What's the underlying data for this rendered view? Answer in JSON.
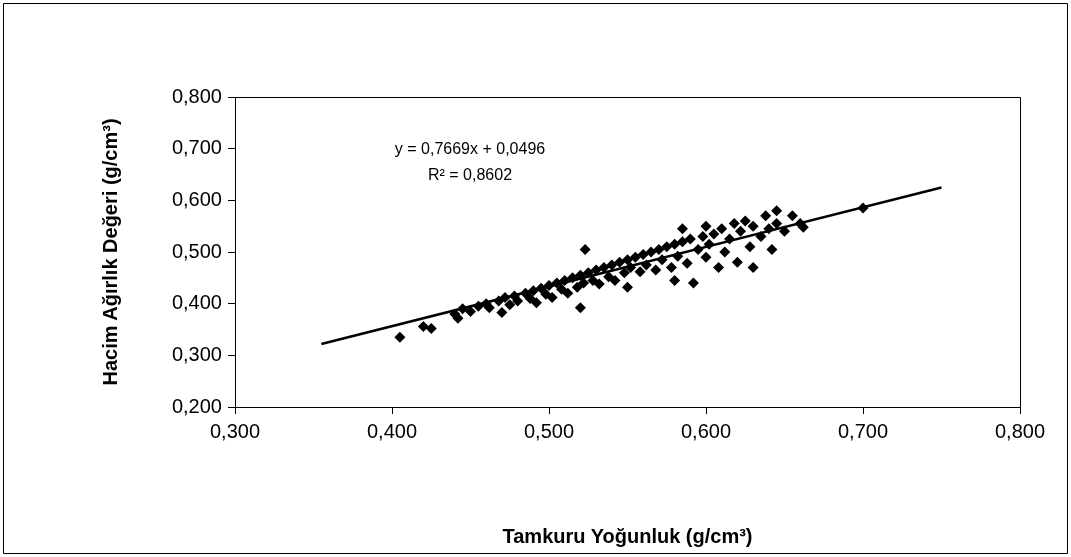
{
  "chart_data": {
    "type": "scatter",
    "xlabel": "Tamkuru Yoğunluk (g/cm³)",
    "ylabel": "Hacim Ağırlık Değeri (g/cm³)",
    "xlim": [
      0.3,
      0.8
    ],
    "xticks": [
      {
        "value": 0.3,
        "label": "0,300"
      },
      {
        "value": 0.4,
        "label": "0,400"
      },
      {
        "value": 0.5,
        "label": "0,500"
      },
      {
        "value": 0.6,
        "label": "0,600"
      },
      {
        "value": 0.7,
        "label": "0,700"
      },
      {
        "value": 0.8,
        "label": "0,800"
      }
    ],
    "ylim": [
      0.2,
      0.8
    ],
    "yticks": [
      {
        "value": 0.2,
        "label": "0,200"
      },
      {
        "value": 0.3,
        "label": "0,300"
      },
      {
        "value": 0.4,
        "label": "0,400"
      },
      {
        "value": 0.5,
        "label": "0,500"
      },
      {
        "value": 0.6,
        "label": "0,600"
      },
      {
        "value": 0.7,
        "label": "0,700"
      },
      {
        "value": 0.8,
        "label": "0,800"
      }
    ],
    "grid": false,
    "legend": false,
    "marker": "diamond",
    "annotations": [
      "y = 0,7669x + 0,0496",
      "R² = 0,8602"
    ],
    "series": [
      {
        "color": "#000000",
        "x": [
          0.405,
          0.42,
          0.425,
          0.44,
          0.442,
          0.445,
          0.45,
          0.455,
          0.46,
          0.462,
          0.468,
          0.47,
          0.472,
          0.475,
          0.478,
          0.48,
          0.485,
          0.488,
          0.49,
          0.492,
          0.495,
          0.498,
          0.5,
          0.502,
          0.505,
          0.508,
          0.51,
          0.512,
          0.515,
          0.518,
          0.52,
          0.52,
          0.522,
          0.523,
          0.525,
          0.528,
          0.53,
          0.532,
          0.535,
          0.538,
          0.54,
          0.542,
          0.545,
          0.548,
          0.55,
          0.55,
          0.552,
          0.555,
          0.558,
          0.56,
          0.562,
          0.565,
          0.568,
          0.57,
          0.572,
          0.575,
          0.578,
          0.58,
          0.58,
          0.582,
          0.585,
          0.585,
          0.588,
          0.59,
          0.592,
          0.595,
          0.598,
          0.6,
          0.6,
          0.602,
          0.605,
          0.608,
          0.61,
          0.612,
          0.615,
          0.618,
          0.62,
          0.622,
          0.625,
          0.628,
          0.63,
          0.63,
          0.635,
          0.638,
          0.64,
          0.642,
          0.645,
          0.645,
          0.65,
          0.655,
          0.66,
          0.662,
          0.7
        ],
        "values": [
          0.335,
          0.356,
          0.352,
          0.38,
          0.372,
          0.39,
          0.385,
          0.395,
          0.4,
          0.392,
          0.405,
          0.383,
          0.412,
          0.398,
          0.415,
          0.405,
          0.42,
          0.41,
          0.425,
          0.402,
          0.43,
          0.418,
          0.435,
          0.412,
          0.44,
          0.428,
          0.445,
          0.42,
          0.45,
          0.432,
          0.455,
          0.392,
          0.44,
          0.505,
          0.46,
          0.445,
          0.465,
          0.438,
          0.47,
          0.452,
          0.475,
          0.445,
          0.48,
          0.46,
          0.485,
          0.432,
          0.47,
          0.49,
          0.462,
          0.495,
          0.475,
          0.5,
          0.465,
          0.505,
          0.485,
          0.51,
          0.47,
          0.515,
          0.445,
          0.492,
          0.545,
          0.52,
          0.478,
          0.525,
          0.44,
          0.505,
          0.53,
          0.49,
          0.55,
          0.515,
          0.535,
          0.47,
          0.545,
          0.5,
          0.525,
          0.555,
          0.48,
          0.54,
          0.56,
          0.51,
          0.47,
          0.55,
          0.53,
          0.57,
          0.545,
          0.505,
          0.58,
          0.555,
          0.54,
          0.57,
          0.555,
          0.548,
          0.585
        ]
      },
      {
        "type": "line",
        "color": "#000000",
        "marker": "none",
        "x": [
          0.355,
          0.75
        ],
        "values": [
          0.322,
          0.625
        ]
      }
    ]
  }
}
